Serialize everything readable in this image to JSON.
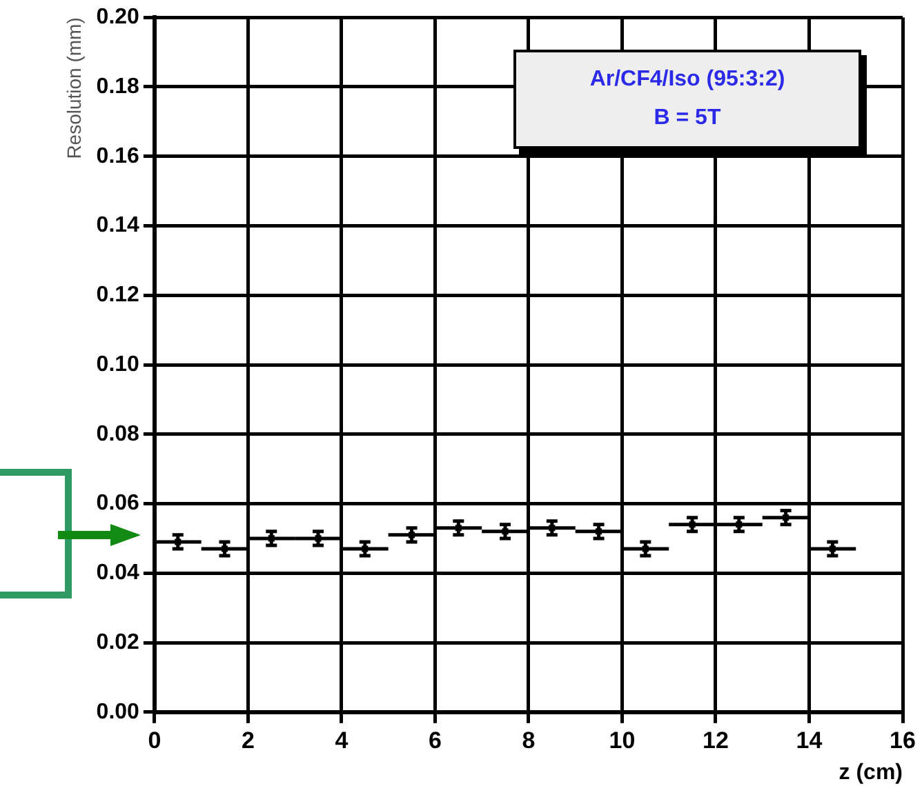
{
  "chart_data": {
    "type": "scatter",
    "xlabel": "z (cm)",
    "ylabel": "Resolution (mm)",
    "x": [
      0.5,
      1.5,
      2.5,
      3.5,
      4.5,
      5.5,
      6.5,
      7.5,
      8.5,
      9.5,
      10.5,
      11.5,
      12.5,
      13.5,
      14.5
    ],
    "series": [
      {
        "color": "#000000",
        "values": [
          0.049,
          0.047,
          0.05,
          0.05,
          0.047,
          0.051,
          0.053,
          0.052,
          0.053,
          0.052,
          0.047,
          0.054,
          0.054,
          0.056,
          0.047
        ],
        "errors": [
          0.002,
          0.002,
          0.002,
          0.002,
          0.002,
          0.002,
          0.002,
          0.002,
          0.002,
          0.002,
          0.002,
          0.002,
          0.002,
          0.002,
          0.002
        ],
        "xerrors": [
          0.5,
          0.5,
          0.5,
          0.5,
          0.5,
          0.5,
          0.5,
          0.5,
          0.5,
          0.5,
          0.5,
          0.5,
          0.5,
          0.5,
          0.5
        ]
      }
    ],
    "xlim": [
      0,
      16
    ],
    "xticks": [
      0,
      2,
      4,
      6,
      8,
      10,
      12,
      14,
      16
    ],
    "ylim": [
      0,
      0.2
    ],
    "yticks": [
      {
        "value": 0,
        "label": "0.00"
      },
      {
        "value": 0.02,
        "label": "0.02"
      },
      {
        "value": 0.04,
        "label": "0.04"
      },
      {
        "value": 0.06,
        "label": "0.06"
      },
      {
        "value": 0.08,
        "label": "0.08"
      },
      {
        "value": 0.1,
        "label": "0.10"
      },
      {
        "value": 0.12,
        "label": "0.12"
      },
      {
        "value": 0.14,
        "label": "0.14"
      },
      {
        "value": 0.16,
        "label": "0.16"
      },
      {
        "value": 0.18,
        "label": "0.18"
      },
      {
        "value": 0.2,
        "label": "0.20"
      }
    ],
    "annotations": [
      "Ar/CF4/Iso (95:3:2)",
      "B = 5T"
    ],
    "grid": true,
    "marker": "square"
  }
}
